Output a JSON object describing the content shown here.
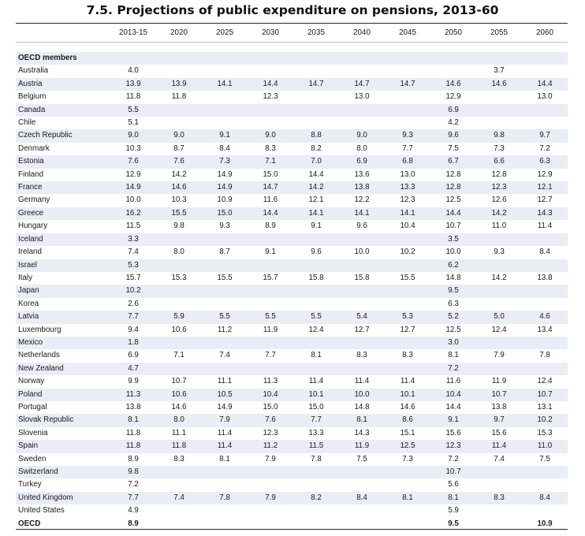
{
  "title": "7.5. Projections of public expenditure on pensions, 2013-60",
  "columns": [
    "2013-15",
    "2020",
    "2025",
    "2030",
    "2035",
    "2040",
    "2045",
    "2050",
    "2055",
    "2060"
  ],
  "section_label": "OECD members",
  "rows": [
    {
      "name": "Australia",
      "values": [
        "4.0",
        "",
        "",
        "",
        "",
        "",
        "",
        "",
        "3.7",
        ""
      ]
    },
    {
      "name": "Austria",
      "values": [
        "13.9",
        "13.9",
        "14.1",
        "14.4",
        "14.7",
        "14.7",
        "14.7",
        "14.6",
        "14.6",
        "14.4"
      ]
    },
    {
      "name": "Belgium",
      "values": [
        "11.8",
        "11.8",
        "",
        "12.3",
        "",
        "13.0",
        "",
        "12.9",
        "",
        "13.0"
      ]
    },
    {
      "name": "Canada",
      "values": [
        "5.5",
        "",
        "",
        "",
        "",
        "",
        "",
        "6.9",
        "",
        ""
      ]
    },
    {
      "name": "Chile",
      "values": [
        "5.1",
        "",
        "",
        "",
        "",
        "",
        "",
        "4.2",
        "",
        ""
      ]
    },
    {
      "name": "Czech Republic",
      "values": [
        "9.0",
        "9.0",
        "9.1",
        "9.0",
        "8.8",
        "9.0",
        "9.3",
        "9.6",
        "9.8",
        "9.7"
      ]
    },
    {
      "name": "Denmark",
      "values": [
        "10.3",
        "8.7",
        "8.4",
        "8.3",
        "8.2",
        "8.0",
        "7.7",
        "7.5",
        "7.3",
        "7.2"
      ]
    },
    {
      "name": "Estonia",
      "values": [
        "7.6",
        "7.6",
        "7.3",
        "7.1",
        "7.0",
        "6.9",
        "6.8",
        "6.7",
        "6.6",
        "6.3"
      ]
    },
    {
      "name": "Finland",
      "values": [
        "12.9",
        "14.2",
        "14.9",
        "15.0",
        "14.4",
        "13.6",
        "13.0",
        "12.8",
        "12.8",
        "12.9"
      ]
    },
    {
      "name": "France",
      "values": [
        "14.9",
        "14.6",
        "14.9",
        "14.7",
        "14.2",
        "13.8",
        "13.3",
        "12.8",
        "12.3",
        "12.1"
      ]
    },
    {
      "name": "Germany",
      "values": [
        "10.0",
        "10.3",
        "10.9",
        "11.6",
        "12.1",
        "12.2",
        "12.3",
        "12.5",
        "12.6",
        "12.7"
      ]
    },
    {
      "name": "Greece",
      "values": [
        "16.2",
        "15.5",
        "15.0",
        "14.4",
        "14.1",
        "14.1",
        "14.1",
        "14.4",
        "14.2",
        "14.3"
      ]
    },
    {
      "name": "Hungary",
      "values": [
        "11.5",
        "9.8",
        "9.3",
        "8.9",
        "9.1",
        "9.6",
        "10.4",
        "10.7",
        "11.0",
        "11.4"
      ]
    },
    {
      "name": "Iceland",
      "values": [
        "3.3",
        "",
        "",
        "",
        "",
        "",
        "",
        "3.5",
        "",
        ""
      ]
    },
    {
      "name": "Ireland",
      "values": [
        "7.4",
        "8.0",
        "8.7",
        "9.1",
        "9.6",
        "10.0",
        "10.2",
        "10.0",
        "9.3",
        "8.4"
      ]
    },
    {
      "name": "Israel",
      "values": [
        "5.3",
        "",
        "",
        "",
        "",
        "",
        "",
        "6.2",
        "",
        ""
      ]
    },
    {
      "name": "Italy",
      "values": [
        "15.7",
        "15.3",
        "15.5",
        "15.7",
        "15.8",
        "15.8",
        "15.5",
        "14.8",
        "14.2",
        "13.8"
      ]
    },
    {
      "name": "Japan",
      "values": [
        "10.2",
        "",
        "",
        "",
        "",
        "",
        "",
        "9.5",
        "",
        ""
      ]
    },
    {
      "name": "Korea",
      "values": [
        "2.6",
        "",
        "",
        "",
        "",
        "",
        "",
        "6.3",
        "",
        ""
      ]
    },
    {
      "name": "Latvia",
      "values": [
        "7.7",
        "5.9",
        "5.5",
        "5.5",
        "5.5",
        "5.4",
        "5.3",
        "5.2",
        "5.0",
        "4.6"
      ]
    },
    {
      "name": "Luxembourg",
      "values": [
        "9.4",
        "10.6",
        "11.2",
        "11.9",
        "12.4",
        "12.7",
        "12.7",
        "12.5",
        "12.4",
        "13.4"
      ]
    },
    {
      "name": "Mexico",
      "values": [
        "1.8",
        "",
        "",
        "",
        "",
        "",
        "",
        "3.0",
        "",
        ""
      ]
    },
    {
      "name": "Netherlands",
      "values": [
        "6.9",
        "7.1",
        "7.4",
        "7.7",
        "8.1",
        "8.3",
        "8.3",
        "8.1",
        "7.9",
        "7.8"
      ]
    },
    {
      "name": "New Zealand",
      "values": [
        "4.7",
        "",
        "",
        "",
        "",
        "",
        "",
        "7.2",
        "",
        ""
      ]
    },
    {
      "name": "Norway",
      "values": [
        "9.9",
        "10.7",
        "11.1",
        "11.3",
        "11.4",
        "11.4",
        "11.4",
        "11.6",
        "11.9",
        "12.4"
      ]
    },
    {
      "name": "Poland",
      "values": [
        "11.3",
        "10.6",
        "10.5",
        "10.4",
        "10.1",
        "10.0",
        "10.1",
        "10.4",
        "10.7",
        "10.7"
      ]
    },
    {
      "name": "Portugal",
      "values": [
        "13.8",
        "14.6",
        "14.9",
        "15.0",
        "15.0",
        "14.8",
        "14.6",
        "14.4",
        "13.8",
        "13.1"
      ]
    },
    {
      "name": "Slovak Republic",
      "values": [
        "8.1",
        "8.0",
        "7.9",
        "7.6",
        "7.7",
        "8.1",
        "8.6",
        "9.1",
        "9.7",
        "10.2"
      ]
    },
    {
      "name": "Slovenia",
      "values": [
        "11.8",
        "11.1",
        "11.4",
        "12.3",
        "13.3",
        "14.3",
        "15.1",
        "15.6",
        "15.6",
        "15.3"
      ]
    },
    {
      "name": "Spain",
      "values": [
        "11.8",
        "11.8",
        "11.4",
        "11.2",
        "11.5",
        "11.9",
        "12.5",
        "12.3",
        "11.4",
        "11.0"
      ]
    },
    {
      "name": "Sweden",
      "values": [
        "8.9",
        "8.3",
        "8.1",
        "7.9",
        "7.8",
        "7.5",
        "7.3",
        "7.2",
        "7.4",
        "7.5"
      ]
    },
    {
      "name": "Switzerland",
      "values": [
        "9.8",
        "",
        "",
        "",
        "",
        "",
        "",
        "10.7",
        "",
        ""
      ]
    },
    {
      "name": "Turkey",
      "values": [
        "7.2",
        "",
        "",
        "",
        "",
        "",
        "",
        "5.6",
        "",
        ""
      ]
    },
    {
      "name": "United Kingdom",
      "values": [
        "7.7",
        "7.4",
        "7.8",
        "7.9",
        "8.2",
        "8.4",
        "8.1",
        "8.1",
        "8.3",
        "8.4"
      ]
    },
    {
      "name": "United States",
      "values": [
        "4.9",
        "",
        "",
        "",
        "",
        "",
        "",
        "5.9",
        "",
        ""
      ]
    }
  ],
  "total": {
    "name": "OECD",
    "values": [
      "8.9",
      "",
      "",
      "",
      "",
      "",
      "",
      "9.5",
      "",
      "10.9"
    ]
  }
}
